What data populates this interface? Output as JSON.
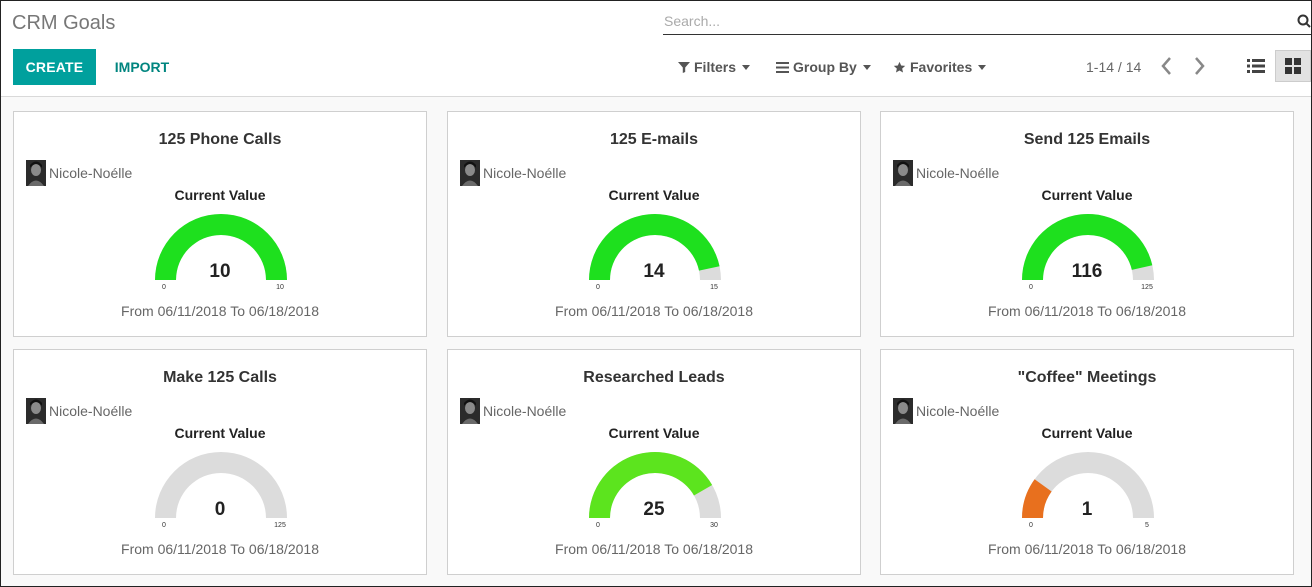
{
  "header": {
    "title": "CRM Goals",
    "search_placeholder": "Search...",
    "create_label": "CREATE",
    "import_label": "IMPORT",
    "filters_label": "Filters",
    "groupby_label": "Group By",
    "favorites_label": "Favorites",
    "pager": "1-14 / 14"
  },
  "colors": {
    "accent": "#00a09d",
    "gauge_green": "#1ee01e",
    "gauge_lightgreen": "#5ce41e",
    "gauge_orange": "#e8701e",
    "gauge_track": "#dcdcdc"
  },
  "goals": [
    {
      "title": "125 Phone Calls",
      "owner": "Nicole-Noélle",
      "label": "Current Value",
      "value": 10,
      "min": 0,
      "max": 10,
      "color": "#1ee01e",
      "value_text": "10",
      "min_text": "0",
      "max_text": "10",
      "dates": "From 06/11/2018 To 06/18/2018"
    },
    {
      "title": "125 E-mails",
      "owner": "Nicole-Noélle",
      "label": "Current Value",
      "value": 14,
      "min": 0,
      "max": 15,
      "color": "#1ee01e",
      "value_text": "14",
      "min_text": "0",
      "max_text": "15",
      "dates": "From 06/11/2018 To 06/18/2018"
    },
    {
      "title": "Send 125 Emails",
      "owner": "Nicole-Noélle",
      "label": "Current Value",
      "value": 116,
      "min": 0,
      "max": 125,
      "color": "#1ee01e",
      "value_text": "116",
      "min_text": "0",
      "max_text": "125",
      "dates": "From 06/11/2018 To 06/18/2018"
    },
    {
      "title": "Make 125 Calls",
      "owner": "Nicole-Noélle",
      "label": "Current Value",
      "value": 0,
      "min": 0,
      "max": 125,
      "color": "#1ee01e",
      "value_text": "0",
      "min_text": "0",
      "max_text": "125",
      "dates": "From 06/11/2018 To 06/18/2018"
    },
    {
      "title": "Researched Leads",
      "owner": "Nicole-Noélle",
      "label": "Current Value",
      "value": 25,
      "min": 0,
      "max": 30,
      "color": "#5ce41e",
      "value_text": "25",
      "min_text": "0",
      "max_text": "30",
      "dates": "From 06/11/2018 To 06/18/2018"
    },
    {
      "title": "\"Coffee\" Meetings",
      "owner": "Nicole-Noélle",
      "label": "Current Value",
      "value": 1,
      "min": 0,
      "max": 5,
      "color": "#e8701e",
      "value_text": "1",
      "min_text": "0",
      "max_text": "5",
      "dates": "From 06/11/2018 To 06/18/2018"
    }
  ]
}
